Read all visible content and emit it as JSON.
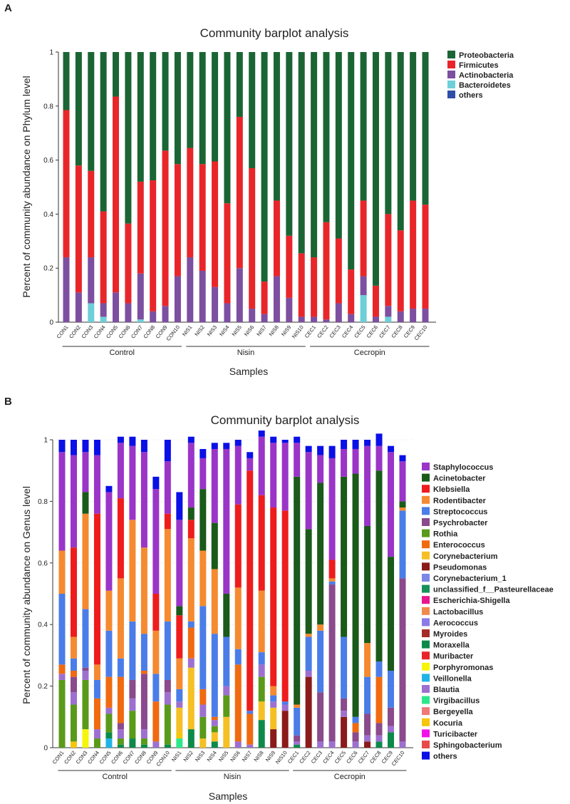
{
  "chart_data": [
    {
      "panel": "A",
      "type": "bar",
      "stacked": true,
      "title": "Community barplot analysis",
      "xlabel": "Samples",
      "ylabel": "Percent of community abundance on Phylum level",
      "ylim": [
        0,
        1
      ],
      "yticks": [
        "0",
        "0.2",
        "0.4",
        "0.6",
        "0.8",
        "1"
      ],
      "legend_position": "right",
      "groups": [
        {
          "label": "Control",
          "start": 0,
          "end": 9
        },
        {
          "label": "Nisin",
          "start": 10,
          "end": 19
        },
        {
          "label": "Cecropin",
          "start": 20,
          "end": 29
        }
      ],
      "categories": [
        "CON1",
        "CON2",
        "CON3",
        "CON4",
        "CON5",
        "CON6",
        "CON7",
        "CON8",
        "CON9",
        "CON10",
        "NIS1",
        "NIS2",
        "NIS3",
        "NIS4",
        "NIS5",
        "NIS6",
        "NIS7",
        "NIS8",
        "NIS9",
        "NIS10",
        "CEC1",
        "CEC2",
        "CEC3",
        "CEC4",
        "CEC5",
        "CEC6",
        "CEC7",
        "CEC8",
        "CEC9",
        "CEC10"
      ],
      "series": [
        {
          "name": "Bacteroidetes",
          "color": "#6ecfd8",
          "values": [
            0,
            0,
            0.07,
            0.02,
            0,
            0,
            0.01,
            0,
            0,
            0,
            0,
            0,
            0,
            0,
            0,
            0,
            0,
            0,
            0,
            0,
            0,
            0,
            0,
            0,
            0.1,
            0,
            0.02,
            0,
            0,
            0
          ]
        },
        {
          "name": "Actinobacteria",
          "color": "#7d4fa0",
          "values": [
            0.24,
            0.11,
            0.17,
            0.05,
            0.11,
            0.07,
            0.17,
            0.04,
            0.06,
            0.17,
            0.24,
            0.19,
            0.13,
            0.07,
            0.2,
            0.05,
            0.03,
            0.17,
            0.09,
            0.02,
            0.02,
            0.01,
            0.07,
            0.03,
            0.07,
            0.02,
            0.04,
            0.04,
            0.05,
            0.05
          ]
        },
        {
          "name": "Firmicutes",
          "color": "#e8262a",
          "values": [
            0.545,
            0.47,
            0.32,
            0.34,
            0.725,
            0.295,
            0.34,
            0.485,
            0.575,
            0.415,
            0.405,
            0.395,
            0.465,
            0.37,
            0.56,
            0.52,
            0.12,
            0.28,
            0.23,
            0.235,
            0.22,
            0.36,
            0.24,
            0.165,
            0.28,
            0.115,
            0.34,
            0.3,
            0.4,
            0.385
          ]
        },
        {
          "name": "Proteobacteria",
          "color": "#1b6535",
          "values": [
            0.215,
            0.42,
            0.44,
            0.59,
            0.165,
            0.635,
            0.48,
            0.475,
            0.365,
            0.415,
            0.355,
            0.415,
            0.405,
            0.56,
            0.24,
            0.43,
            0.85,
            0.55,
            0.68,
            0.745,
            0.76,
            0.63,
            0.69,
            0.805,
            0.55,
            0.865,
            0.6,
            0.66,
            0.55,
            0.565
          ]
        },
        {
          "name": "others",
          "color": "#2e4fa8",
          "values": [
            0,
            0,
            0,
            0,
            0,
            0,
            0,
            0,
            0,
            0,
            0,
            0,
            0,
            0,
            0,
            0,
            0,
            0,
            0,
            0,
            0,
            0,
            0,
            0,
            0,
            0,
            0,
            0,
            0,
            0
          ]
        }
      ],
      "legend_order": [
        "Proteobacteria",
        "Firmicutes",
        "Actinobacteria",
        "Bacteroidetes",
        "others"
      ]
    },
    {
      "panel": "B",
      "type": "bar",
      "stacked": true,
      "title": "Community barplot analysis",
      "xlabel": "Samples",
      "ylabel": "Percent of community abundance on Genus level",
      "ylim": [
        0,
        1
      ],
      "yticks": [
        "0",
        "0.2",
        "0.4",
        "0.6",
        "0.8",
        "1"
      ],
      "legend_position": "right",
      "groups": [
        {
          "label": "Control",
          "start": 0,
          "end": 9
        },
        {
          "label": "Nisin",
          "start": 10,
          "end": 19
        },
        {
          "label": "Cecropin",
          "start": 20,
          "end": 29
        }
      ],
      "categories": [
        "CON1",
        "CON2",
        "CON3",
        "CON4",
        "CON5",
        "CON6",
        "CON7",
        "CON8",
        "CON9",
        "CON10",
        "NIS1",
        "NIS2",
        "NIS3",
        "NIS4",
        "NIS5",
        "NIS6",
        "NIS7",
        "NIS8",
        "NIS9",
        "NIS10",
        "CEC1",
        "CEC2",
        "CEC3",
        "CEC4",
        "CEC5",
        "CEC6",
        "CEC7",
        "CEC8",
        "CEC9",
        "CEC10"
      ],
      "series": [
        {
          "name": "Pseudomonas",
          "color": "#8b1a1a",
          "values": [
            0,
            0,
            0,
            0,
            0,
            0,
            0,
            0,
            0,
            0,
            0,
            0,
            0,
            0,
            0,
            0,
            0,
            0,
            0.06,
            0.12,
            0,
            0.23,
            0,
            0,
            0.1,
            0,
            0.02,
            0,
            0,
            0
          ]
        },
        {
          "name": "Myroides",
          "color": "#a52a2a",
          "values": [
            0,
            0,
            0,
            0,
            0,
            0,
            0,
            0,
            0,
            0,
            0,
            0,
            0,
            0,
            0,
            0,
            0,
            0,
            0,
            0,
            0,
            0,
            0,
            0,
            0,
            0,
            0,
            0,
            0,
            0
          ]
        },
        {
          "name": "Veillonella",
          "color": "#20b4e6",
          "values": [
            0,
            0,
            0,
            0,
            0.03,
            0,
            0,
            0,
            0,
            0,
            0,
            0,
            0,
            0,
            0,
            0,
            0,
            0,
            0,
            0,
            0,
            0,
            0,
            0,
            0,
            0,
            0,
            0,
            0,
            0
          ]
        },
        {
          "name": "Porphyromonas",
          "color": "#f5f50a",
          "values": [
            0,
            0,
            0.06,
            0,
            0,
            0,
            0,
            0,
            0,
            0,
            0,
            0,
            0,
            0,
            0,
            0,
            0,
            0,
            0,
            0,
            0,
            0,
            0,
            0,
            0,
            0,
            0,
            0,
            0,
            0
          ]
        },
        {
          "name": "Moraxella",
          "color": "#0d8a4a",
          "values": [
            0,
            0,
            0,
            0,
            0.02,
            0.01,
            0.03,
            0.01,
            0,
            0.01,
            0,
            0.06,
            0,
            0.02,
            0,
            0,
            0,
            0.09,
            0,
            0,
            0.01,
            0,
            0,
            0,
            0,
            0,
            0,
            0.02,
            0.05,
            0
          ]
        },
        {
          "name": "Virgibacillus",
          "color": "#2de88a",
          "values": [
            0,
            0,
            0,
            0,
            0,
            0,
            0,
            0,
            0,
            0,
            0.03,
            0,
            0,
            0,
            0,
            0,
            0,
            0,
            0,
            0,
            0,
            0,
            0,
            0,
            0,
            0,
            0,
            0,
            0,
            0
          ]
        },
        {
          "name": "Kocuria",
          "color": "#f5c60a",
          "values": [
            0,
            0.02,
            0,
            0,
            0,
            0,
            0,
            0,
            0,
            0,
            0.02,
            0,
            0,
            0,
            0,
            0,
            0,
            0,
            0,
            0,
            0,
            0,
            0,
            0,
            0,
            0,
            0,
            0,
            0,
            0
          ]
        },
        {
          "name": "Corynebacterium",
          "color": "#f5c024",
          "values": [
            0,
            0,
            0,
            0,
            0,
            0,
            0,
            0,
            0,
            0,
            0.08,
            0.2,
            0.03,
            0.03,
            0.1,
            0,
            0,
            0.06,
            0.07,
            0,
            0,
            0,
            0,
            0,
            0,
            0,
            0,
            0,
            0,
            0
          ]
        },
        {
          "name": "Muribacter",
          "color": "#e8262a",
          "values": [
            0,
            0,
            0,
            0,
            0,
            0,
            0,
            0,
            0,
            0,
            0,
            0,
            0,
            0,
            0,
            0,
            0,
            0,
            0,
            0,
            0,
            0,
            0,
            0,
            0,
            0,
            0,
            0,
            0,
            0
          ]
        },
        {
          "name": "Rothia",
          "color": "#5a9a1a",
          "values": [
            0.22,
            0.12,
            0.16,
            0.03,
            0.06,
            0.02,
            0.09,
            0.02,
            0,
            0.13,
            0,
            0,
            0.07,
            0.02,
            0.07,
            0,
            0,
            0.08,
            0,
            0,
            0,
            0,
            0,
            0,
            0,
            0,
            0,
            0,
            0,
            0
          ]
        },
        {
          "name": "Blautia",
          "color": "#9d70d0",
          "values": [
            0.02,
            0.04,
            0.03,
            0.03,
            0.02,
            0.03,
            0.04,
            0.03,
            0.02,
            0.04,
            0.02,
            0.03,
            0.04,
            0.02,
            0.03,
            0.02,
            0.01,
            0.04,
            0.02,
            0.02,
            0.01,
            0.02,
            0.02,
            0.02,
            0.02,
            0.02,
            0.02,
            0.02,
            0.02,
            0.02
          ]
        },
        {
          "name": "Psychrobacter",
          "color": "#8a4a8c",
          "values": [
            0,
            0.05,
            0.01,
            0,
            0,
            0.02,
            0.06,
            0.18,
            0,
            0.04,
            0,
            0,
            0,
            0,
            0,
            0,
            0,
            0,
            0,
            0,
            0.02,
            0,
            0.16,
            0.51,
            0.04,
            0.03,
            0.07,
            0.04,
            0.06,
            0.53
          ]
        },
        {
          "name": "Enterococcus",
          "color": "#f06a10",
          "values": [
            0.03,
            0.02,
            0,
            0.1,
            0.1,
            0.15,
            0,
            0.01,
            0.13,
            0,
            0,
            0.1,
            0.05,
            0.01,
            0,
            0.25,
            0.1,
            0,
            0,
            0,
            0,
            0,
            0,
            0,
            0,
            0.03,
            0,
            0.15,
            0,
            0
          ]
        },
        {
          "name": "Streptococcus",
          "color": "#4b7de8",
          "values": [
            0.23,
            0.04,
            0.19,
            0.06,
            0.15,
            0.06,
            0.19,
            0.12,
            0.09,
            0.19,
            0.04,
            0.02,
            0.27,
            0.27,
            0.16,
            0.05,
            0.01,
            0.04,
            0.02,
            0.01,
            0.09,
            0.11,
            0.2,
            0.01,
            0.2,
            0.02,
            0.12,
            0.05,
            0.12,
            0.22
          ]
        },
        {
          "name": "Rodentibacter",
          "color": "#f58a30",
          "values": [
            0.14,
            0.07,
            0.31,
            0.05,
            0.13,
            0.26,
            0.33,
            0.28,
            0.14,
            0.3,
            0.1,
            0.27,
            0.18,
            0.21,
            0,
            0.2,
            0,
            0.2,
            0.03,
            0,
            0.01,
            0.01,
            0.02,
            0.01,
            0,
            0,
            0.11,
            0,
            0,
            0.01
          ]
        },
        {
          "name": "Klebsiella",
          "color": "#ee1c1c",
          "values": [
            0,
            0.29,
            0,
            0.49,
            0,
            0.26,
            0,
            0,
            0.12,
            0.05,
            0.14,
            0.06,
            0,
            0,
            0,
            0.27,
            0.78,
            0.31,
            0.58,
            0.62,
            0,
            0,
            0,
            0.06,
            0,
            0,
            0,
            0,
            0,
            0
          ]
        },
        {
          "name": "Acinetobacter",
          "color": "#1a5a1a",
          "values": [
            0,
            0,
            0.07,
            0,
            0,
            0,
            0,
            0,
            0,
            0,
            0.03,
            0.04,
            0.2,
            0.15,
            0.14,
            0,
            0,
            0,
            0,
            0,
            0.74,
            0.34,
            0.46,
            0,
            0.52,
            0.79,
            0.38,
            0.62,
            0.37,
            0.02
          ]
        },
        {
          "name": "Staphylococcus",
          "color": "#9a35c8",
          "values": [
            0.32,
            0.3,
            0.13,
            0.19,
            0.32,
            0.18,
            0.24,
            0.31,
            0.34,
            0.17,
            0.28,
            0.21,
            0.1,
            0.24,
            0.47,
            0.19,
            0.04,
            0.19,
            0.21,
            0.22,
            0.11,
            0.25,
            0.09,
            0.33,
            0.09,
            0.08,
            0.26,
            0.08,
            0.34,
            0.13
          ]
        },
        {
          "name": "others",
          "color": "#0a10e6",
          "values": [
            0.04,
            0.05,
            0.04,
            0.05,
            0.02,
            0.02,
            0.03,
            0.04,
            0.04,
            0.07,
            0.09,
            0.02,
            0.03,
            0.02,
            0.02,
            0.02,
            0.02,
            0.02,
            0.02,
            0.01,
            0.02,
            0.02,
            0.03,
            0.04,
            0.03,
            0.03,
            0.02,
            0.04,
            0.02,
            0.02
          ]
        }
      ],
      "legend_entries": [
        {
          "name": "Staphylococcus",
          "color": "#9a35c8"
        },
        {
          "name": "Acinetobacter",
          "color": "#1a5a1a"
        },
        {
          "name": "Klebsiella",
          "color": "#ee1c1c"
        },
        {
          "name": "Rodentibacter",
          "color": "#f58a30"
        },
        {
          "name": "Streptococcus",
          "color": "#4b7de8"
        },
        {
          "name": "Psychrobacter",
          "color": "#8a4a8c"
        },
        {
          "name": "Rothia",
          "color": "#5a9a1a"
        },
        {
          "name": "Enterococcus",
          "color": "#f06a10"
        },
        {
          "name": "Corynebacterium",
          "color": "#f5c024"
        },
        {
          "name": "Pseudomonas",
          "color": "#8b1a1a"
        },
        {
          "name": "Corynebacterium_1",
          "color": "#7b88e8"
        },
        {
          "name": "unclassified_f__Pasteurellaceae",
          "color": "#17905a"
        },
        {
          "name": "Escherichia-Shigella",
          "color": "#e8168c"
        },
        {
          "name": "Lactobacillus",
          "color": "#f08a4a"
        },
        {
          "name": "Aerococcus",
          "color": "#8a7ae8"
        },
        {
          "name": "Myroides",
          "color": "#a52a2a"
        },
        {
          "name": "Moraxella",
          "color": "#0d8a4a"
        },
        {
          "name": "Muribacter",
          "color": "#e8262a"
        },
        {
          "name": "Porphyromonas",
          "color": "#f5f50a"
        },
        {
          "name": "Veillonella",
          "color": "#20b4e6"
        },
        {
          "name": "Blautia",
          "color": "#9d70d0"
        },
        {
          "name": "Virgibacillus",
          "color": "#2de88a"
        },
        {
          "name": "Bergeyella",
          "color": "#f07878"
        },
        {
          "name": "Kocuria",
          "color": "#f5c60a"
        },
        {
          "name": "Turicibacter",
          "color": "#f014e8"
        },
        {
          "name": "Sphingobacterium",
          "color": "#e84a4a"
        },
        {
          "name": "others",
          "color": "#0a10e6"
        }
      ]
    }
  ]
}
